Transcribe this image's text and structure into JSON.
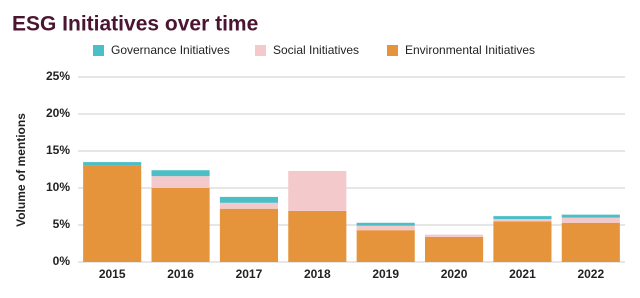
{
  "chart_data": {
    "type": "stacked-bar",
    "title": "ESG Initiatives over time",
    "y_label": "Volume of mentions",
    "categories": [
      "2015",
      "2016",
      "2017",
      "2018",
      "2019",
      "2020",
      "2021",
      "2022"
    ],
    "series": [
      {
        "name": "Governance Initiatives",
        "color": "#4bbec6",
        "values": [
          0.4,
          0.8,
          0.8,
          0,
          0.4,
          0,
          0.4,
          0.4
        ]
      },
      {
        "name": "Social Initiatives",
        "color": "#f4c9cb",
        "values": [
          0,
          1.6,
          0.8,
          5.4,
          0.6,
          0.3,
          0.3,
          0.7
        ]
      },
      {
        "name": "Environmental Initiatives",
        "color": "#e6943b",
        "values": [
          13.1,
          10.0,
          7.2,
          6.9,
          4.3,
          3.4,
          5.5,
          5.3
        ]
      }
    ],
    "ylim": [
      0,
      25
    ],
    "yticks": [
      {
        "value": 0,
        "label": "0%"
      },
      {
        "value": 5,
        "label": "5%"
      },
      {
        "value": 10,
        "label": "10%"
      },
      {
        "value": 15,
        "label": "15%"
      },
      {
        "value": 20,
        "label": "20%"
      },
      {
        "value": 25,
        "label": "25%"
      }
    ],
    "grid": true
  }
}
